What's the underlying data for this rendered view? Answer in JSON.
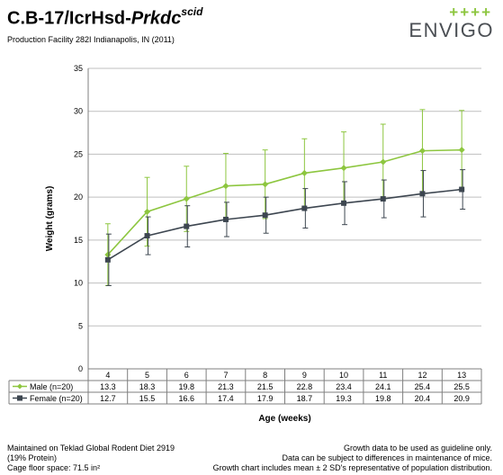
{
  "header": {
    "title_main": "C.B-17/IcrHsd-",
    "title_italic": "Prkdc",
    "title_sup": "scid",
    "subtitle": "Production Facility 282I Indianapolis, IN (2011)",
    "brand_crosses": "++++",
    "brand_name": "ENVIGO"
  },
  "chart_data": {
    "type": "line",
    "x": [
      4,
      5,
      6,
      7,
      8,
      9,
      10,
      11,
      12,
      13
    ],
    "xlabel": "Age (weeks)",
    "ylabel": "Weight (grams)",
    "ylim": [
      0,
      35
    ],
    "yticks": [
      0,
      5,
      10,
      15,
      20,
      25,
      30,
      35
    ],
    "grid": true,
    "legend": "data-table-below",
    "series": [
      {
        "name": "Male (n=20)",
        "color": "#8dc63f",
        "marker": "diamond",
        "values": [
          13.3,
          18.3,
          19.8,
          21.3,
          21.5,
          22.8,
          23.4,
          24.1,
          25.4,
          25.5
        ],
        "error": [
          3.6,
          4.0,
          3.8,
          3.8,
          4.0,
          4.0,
          4.2,
          4.4,
          4.8,
          4.6
        ]
      },
      {
        "name": "Female (n=20)",
        "color": "#3d4650",
        "marker": "square",
        "values": [
          12.7,
          15.5,
          16.6,
          17.4,
          17.9,
          18.7,
          19.3,
          19.8,
          20.4,
          20.9
        ],
        "error": [
          3.0,
          2.2,
          2.4,
          2.0,
          2.1,
          2.3,
          2.5,
          2.2,
          2.7,
          2.3
        ]
      }
    ]
  },
  "footer": {
    "left": [
      "Maintained on Teklad Global Rodent Diet 2919",
      "(19% Protein)",
      "Cage floor space: 71.5 in²"
    ],
    "right": [
      "Growth data to be used as guideline only.",
      "Data can be subject to differences in maintenance of mice.",
      "Growth chart includes mean ± 2 SD's representative of population distribution."
    ]
  }
}
